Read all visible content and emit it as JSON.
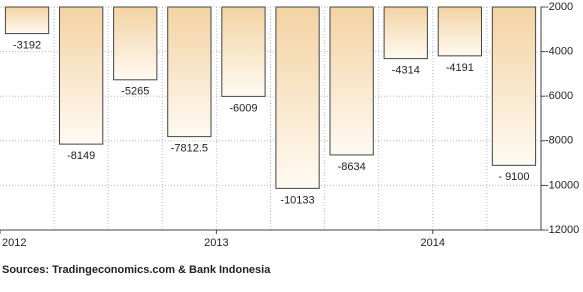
{
  "chart_data": {
    "type": "bar",
    "categories": [
      "2012",
      null,
      null,
      null,
      "2013",
      null,
      null,
      null,
      "2014",
      null
    ],
    "values": [
      -3192,
      -8149,
      -5265,
      -7812.5,
      -6009,
      -10133,
      -8634,
      -4314,
      -4191,
      -9100
    ],
    "value_labels": [
      "-3192",
      "-8149",
      "-5265",
      "-7812.5",
      "-6009",
      "-10133",
      "-8634",
      "-4314",
      "-4191",
      "- 9100"
    ],
    "color": "#f3d3a3",
    "ylim": [
      -12000,
      -2000
    ],
    "yticks": [
      -2000,
      -4000,
      -6000,
      -8000,
      -10000,
      -12000
    ],
    "grid": true,
    "source": "Sources: Tradingeconomics.com & Bank Indonesia"
  }
}
